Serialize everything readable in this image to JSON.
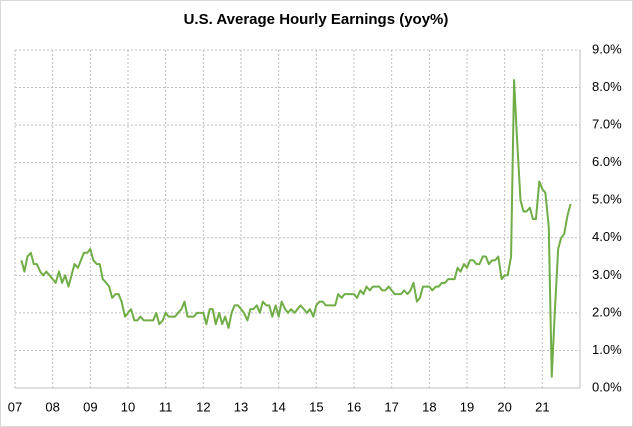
{
  "chart_data": {
    "type": "line",
    "title": "U.S. Average Hourly Earnings (yoy%)",
    "x": [
      2007.17,
      2007.25,
      2007.33,
      2007.42,
      2007.5,
      2007.58,
      2007.67,
      2007.75,
      2007.83,
      2007.92,
      2008.0,
      2008.08,
      2008.17,
      2008.25,
      2008.33,
      2008.42,
      2008.5,
      2008.58,
      2008.67,
      2008.75,
      2008.83,
      2008.92,
      2009.0,
      2009.08,
      2009.17,
      2009.25,
      2009.33,
      2009.42,
      2009.5,
      2009.58,
      2009.67,
      2009.75,
      2009.83,
      2009.92,
      2010.0,
      2010.08,
      2010.17,
      2010.25,
      2010.33,
      2010.42,
      2010.5,
      2010.58,
      2010.67,
      2010.75,
      2010.83,
      2010.92,
      2011.0,
      2011.08,
      2011.17,
      2011.25,
      2011.33,
      2011.42,
      2011.5,
      2011.58,
      2011.67,
      2011.75,
      2011.83,
      2011.92,
      2012.0,
      2012.08,
      2012.17,
      2012.25,
      2012.33,
      2012.42,
      2012.5,
      2012.58,
      2012.67,
      2012.75,
      2012.83,
      2012.92,
      2013.0,
      2013.08,
      2013.17,
      2013.25,
      2013.33,
      2013.42,
      2013.5,
      2013.58,
      2013.67,
      2013.75,
      2013.83,
      2013.92,
      2014.0,
      2014.08,
      2014.17,
      2014.25,
      2014.33,
      2014.42,
      2014.5,
      2014.58,
      2014.67,
      2014.75,
      2014.83,
      2014.92,
      2015.0,
      2015.08,
      2015.17,
      2015.25,
      2015.33,
      2015.42,
      2015.5,
      2015.58,
      2015.67,
      2015.75,
      2015.83,
      2015.92,
      2016.0,
      2016.08,
      2016.17,
      2016.25,
      2016.33,
      2016.42,
      2016.5,
      2016.58,
      2016.67,
      2016.75,
      2016.83,
      2016.92,
      2017.0,
      2017.08,
      2017.17,
      2017.25,
      2017.33,
      2017.42,
      2017.5,
      2017.58,
      2017.67,
      2017.75,
      2017.83,
      2017.92,
      2018.0,
      2018.08,
      2018.17,
      2018.25,
      2018.33,
      2018.42,
      2018.5,
      2018.58,
      2018.67,
      2018.75,
      2018.83,
      2018.92,
      2019.0,
      2019.08,
      2019.17,
      2019.25,
      2019.33,
      2019.42,
      2019.5,
      2019.58,
      2019.67,
      2019.75,
      2019.83,
      2019.92,
      2020.0,
      2020.08,
      2020.17,
      2020.25,
      2020.33,
      2020.42,
      2020.5,
      2020.58,
      2020.67,
      2020.75,
      2020.83,
      2020.92,
      2021.0,
      2021.08,
      2021.17,
      2021.25,
      2021.33,
      2021.42,
      2021.5,
      2021.58,
      2021.67,
      2021.75
    ],
    "series": [
      {
        "color": "#70ad47",
        "values": [
          3.4,
          3.1,
          3.5,
          3.6,
          3.3,
          3.3,
          3.1,
          3.0,
          3.1,
          3.0,
          2.9,
          2.8,
          3.1,
          2.8,
          3.0,
          2.7,
          3.0,
          3.3,
          3.2,
          3.4,
          3.6,
          3.6,
          3.7,
          3.4,
          3.3,
          3.3,
          2.9,
          2.8,
          2.7,
          2.4,
          2.5,
          2.5,
          2.3,
          1.9,
          2.0,
          2.1,
          1.8,
          1.8,
          1.9,
          1.8,
          1.8,
          1.8,
          1.8,
          2.0,
          1.7,
          1.8,
          2.0,
          1.9,
          1.9,
          1.9,
          2.0,
          2.1,
          2.3,
          1.9,
          1.9,
          1.9,
          2.0,
          2.0,
          2.0,
          1.7,
          2.1,
          2.1,
          1.7,
          2.0,
          1.7,
          1.9,
          1.6,
          2.0,
          2.2,
          2.2,
          2.1,
          2.0,
          1.8,
          2.1,
          2.1,
          2.2,
          2.0,
          2.3,
          2.2,
          2.2,
          1.9,
          2.2,
          1.9,
          2.3,
          2.1,
          2.0,
          2.1,
          2.0,
          2.1,
          2.2,
          2.1,
          2.0,
          2.1,
          1.9,
          2.2,
          2.3,
          2.3,
          2.2,
          2.2,
          2.2,
          2.2,
          2.5,
          2.4,
          2.5,
          2.5,
          2.5,
          2.5,
          2.4,
          2.6,
          2.5,
          2.7,
          2.6,
          2.7,
          2.7,
          2.7,
          2.6,
          2.6,
          2.7,
          2.6,
          2.5,
          2.5,
          2.5,
          2.6,
          2.5,
          2.6,
          2.8,
          2.3,
          2.4,
          2.7,
          2.7,
          2.7,
          2.6,
          2.7,
          2.7,
          2.8,
          2.8,
          2.9,
          2.9,
          2.9,
          3.2,
          3.1,
          3.3,
          3.2,
          3.4,
          3.4,
          3.3,
          3.3,
          3.5,
          3.5,
          3.3,
          3.4,
          3.4,
          3.5,
          2.9,
          3.0,
          3.0,
          3.5,
          8.2,
          6.6,
          5.0,
          4.7,
          4.7,
          4.8,
          4.5,
          4.5,
          5.5,
          5.3,
          5.2,
          4.3,
          0.3,
          2.0,
          3.7,
          4.0,
          4.1,
          4.6,
          4.9
        ]
      }
    ],
    "xlim": [
      2007,
      2022
    ],
    "xticks": [
      {
        "value": 2007,
        "label": "07"
      },
      {
        "value": 2008,
        "label": "08"
      },
      {
        "value": 2009,
        "label": "09"
      },
      {
        "value": 2010,
        "label": "10"
      },
      {
        "value": 2011,
        "label": "11"
      },
      {
        "value": 2012,
        "label": "12"
      },
      {
        "value": 2013,
        "label": "13"
      },
      {
        "value": 2014,
        "label": "14"
      },
      {
        "value": 2015,
        "label": "15"
      },
      {
        "value": 2016,
        "label": "16"
      },
      {
        "value": 2017,
        "label": "17"
      },
      {
        "value": 2018,
        "label": "18"
      },
      {
        "value": 2019,
        "label": "19"
      },
      {
        "value": 2020,
        "label": "20"
      },
      {
        "value": 2021,
        "label": "21"
      }
    ],
    "ylim": [
      0,
      9
    ],
    "yticks": [
      {
        "value": 0,
        "label": "0.0%"
      },
      {
        "value": 1,
        "label": "1.0%"
      },
      {
        "value": 2,
        "label": "2.0%"
      },
      {
        "value": 3,
        "label": "3.0%"
      },
      {
        "value": 4,
        "label": "4.0%"
      },
      {
        "value": 5,
        "label": "5.0%"
      },
      {
        "value": 6,
        "label": "6.0%"
      },
      {
        "value": 7,
        "label": "7.0%"
      },
      {
        "value": 8,
        "label": "8.0%"
      },
      {
        "value": 9,
        "label": "9.0%"
      }
    ],
    "grid": true
  }
}
